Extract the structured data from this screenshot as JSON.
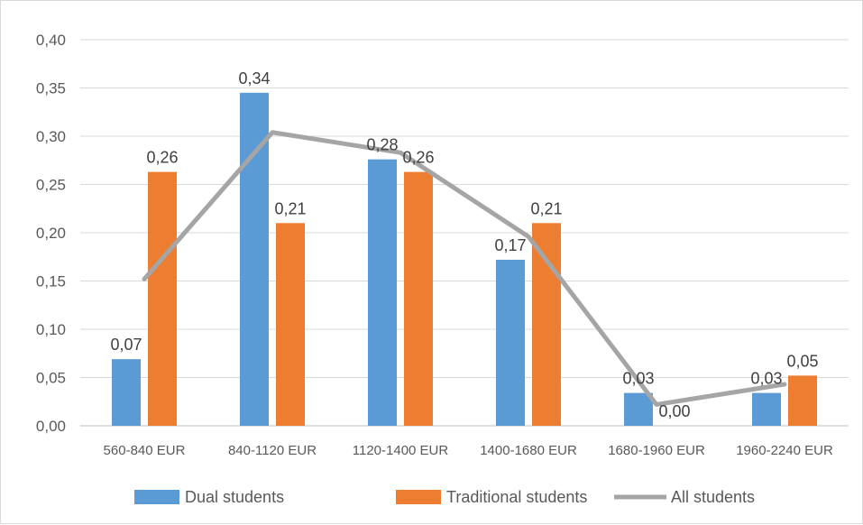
{
  "chart_data": {
    "type": "bar",
    "categories": [
      "560-840 EUR",
      "840-1120 EUR",
      "1120-1400 EUR",
      "1400-1680 EUR",
      "1680-1960 EUR",
      "1960-2240 EUR"
    ],
    "series": [
      {
        "name": "Dual students",
        "kind": "bar",
        "color": "#5b9bd5",
        "values": [
          0.069,
          0.345,
          0.276,
          0.172,
          0.034,
          0.034
        ],
        "labels": [
          "0,07",
          "0,34",
          "0,28",
          "0,17",
          "0,03",
          "0,03"
        ]
      },
      {
        "name": "Traditional students",
        "kind": "bar",
        "color": "#ed7d31",
        "values": [
          0.263,
          0.21,
          0.263,
          0.21,
          0.0,
          0.052
        ],
        "labels": [
          "0,26",
          "0,21",
          "0,26",
          "0,21",
          "0,00",
          "0,05"
        ]
      },
      {
        "name": "All students",
        "kind": "line",
        "color": "#a5a5a5",
        "values": [
          0.152,
          0.304,
          0.283,
          0.196,
          0.022,
          0.043
        ]
      }
    ],
    "ylim": [
      0,
      0.4
    ],
    "yticks": [
      "0,00",
      "0,05",
      "0,10",
      "0,15",
      "0,20",
      "0,25",
      "0,30",
      "0,35",
      "0,40"
    ],
    "grid": true,
    "legend_position": "bottom",
    "title": "",
    "xlabel": "",
    "ylabel": ""
  }
}
